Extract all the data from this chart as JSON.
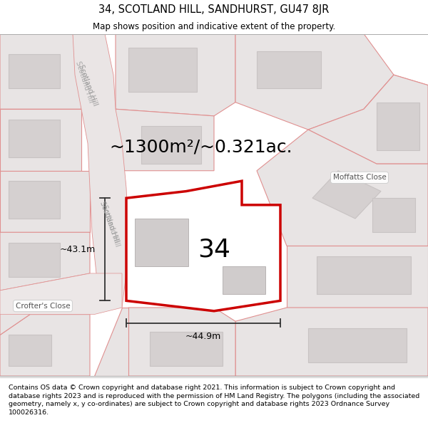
{
  "title": "34, SCOTLAND HILL, SANDHURST, GU47 8JR",
  "subtitle": "Map shows position and indicative extent of the property.",
  "area_text": "~1300m²/~0.321ac.",
  "number_label": "34",
  "dim_horizontal": "~44.9m",
  "dim_vertical": "~43.1m",
  "label_moffatts": "Moffatts Close",
  "label_crofters": "Crofter's Close",
  "label_scotland_hill1": "Scotland Hill",
  "label_scotland_hill2": "Scotland Hill",
  "footer": "Contains OS data © Crown copyright and database right 2021. This information is subject to Crown copyright and database rights 2023 and is reproduced with the permission of HM Land Registry. The polygons (including the associated geometry, namely x, y co-ordinates) are subject to Crown copyright and database rights 2023 Ordnance Survey 100026316.",
  "map_bg": "#f2efef",
  "parcel_fill": "#e8e4e4",
  "parcel_edge": "#e09090",
  "building_fill": "#d5d0d0",
  "building_edge": "#c8c3c3",
  "highlight_fill": "#ffffff",
  "highlight_stroke": "#cc0000",
  "measure_color": "#333333",
  "white": "#ffffff",
  "title_fontsize": 10.5,
  "subtitle_fontsize": 8.5,
  "area_fontsize": 18,
  "number_fontsize": 26,
  "dim_fontsize": 9,
  "road_label_fontsize": 7,
  "street_label_fontsize": 7.5,
  "footer_fontsize": 6.8
}
